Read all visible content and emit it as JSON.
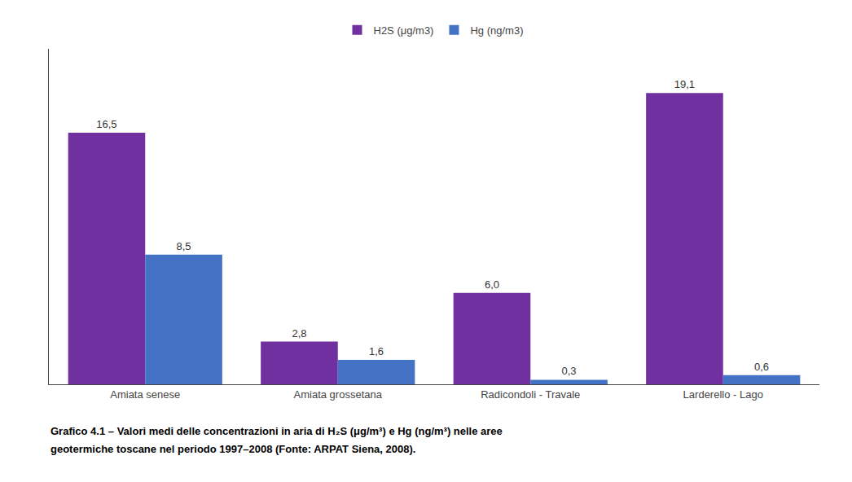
{
  "chart_data": {
    "type": "bar",
    "categories": [
      "Amiata senese",
      "Amiata grossetana",
      "Radicondoli - Travale",
      "Larderello - Lago"
    ],
    "series": [
      {
        "name": "H2S (μg/m3)",
        "color": "#7030A0",
        "values": [
          16.5,
          2.8,
          6.0,
          19.1
        ],
        "value_labels": [
          "16,5",
          "2,8",
          "6,0",
          "19,1"
        ]
      },
      {
        "name": "Hg (ng/m3)",
        "color": "#4472C4",
        "values": [
          8.5,
          1.6,
          0.3,
          0.6
        ],
        "value_labels": [
          "8,5",
          "1,6",
          "0,3",
          "0,6"
        ]
      }
    ],
    "ylim": [
      0,
      22
    ],
    "grid": false,
    "legend": "top",
    "data_labels": true,
    "tick_labels": "x",
    "annotations": [
      "Grafico 4.1 – Valori medi delle concentrazioni in aria di H₂S (μg/m³) e Hg (ng/m³) nelle aree",
      "geotermiche toscane nel periodo 1997–2008 (Fonte: ARPAT Siena, 2008)."
    ]
  }
}
